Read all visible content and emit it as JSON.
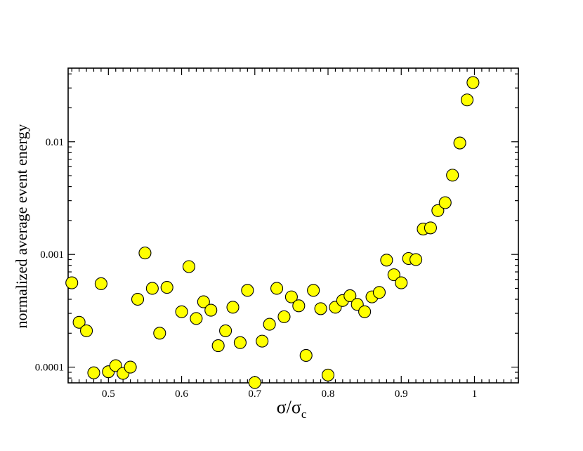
{
  "chart_data": {
    "type": "scatter",
    "xlabel_main": "σ/σ",
    "xlabel_sub": "c",
    "ylabel": "normalized average event energy",
    "xlim": [
      0.445,
      1.06
    ],
    "ylim": [
      7.25e-05,
      0.045
    ],
    "y_scale": "log",
    "x_ticks": [
      {
        "value": 0.5,
        "label": "0.5"
      },
      {
        "value": 0.6,
        "label": "0.6"
      },
      {
        "value": 0.7,
        "label": "0.7"
      },
      {
        "value": 0.8,
        "label": "0.8"
      },
      {
        "value": 0.9,
        "label": "0.9"
      },
      {
        "value": 1.0,
        "label": "1"
      }
    ],
    "y_ticks": [
      {
        "value": 0.0001,
        "label": "0.0001"
      },
      {
        "value": 0.001,
        "label": "0.001"
      },
      {
        "value": 0.01,
        "label": "0.01"
      }
    ],
    "grid": false,
    "marker_color": "#ffff00",
    "marker_edge": "#000000",
    "points": [
      [
        0.45,
        0.00056
      ],
      [
        0.46,
        0.00025
      ],
      [
        0.47,
        0.00021
      ],
      [
        0.48,
        8.9e-05
      ],
      [
        0.49,
        0.00055
      ],
      [
        0.5,
        9.1e-05
      ],
      [
        0.51,
        0.000103
      ],
      [
        0.52,
        8.8e-05
      ],
      [
        0.53,
        0.0001
      ],
      [
        0.54,
        0.0004
      ],
      [
        0.55,
        0.00103
      ],
      [
        0.56,
        0.0005
      ],
      [
        0.57,
        0.0002
      ],
      [
        0.58,
        0.00051
      ],
      [
        0.6,
        0.00031
      ],
      [
        0.61,
        0.00078
      ],
      [
        0.62,
        0.00027
      ],
      [
        0.63,
        0.00038
      ],
      [
        0.64,
        0.00032
      ],
      [
        0.65,
        0.000155
      ],
      [
        0.66,
        0.00021
      ],
      [
        0.67,
        0.00034
      ],
      [
        0.68,
        0.000165
      ],
      [
        0.69,
        0.00048
      ],
      [
        0.7,
        7.3e-05
      ],
      [
        0.71,
        0.00017
      ],
      [
        0.72,
        0.00024
      ],
      [
        0.73,
        0.0005
      ],
      [
        0.74,
        0.00028
      ],
      [
        0.75,
        0.00042
      ],
      [
        0.76,
        0.00035
      ],
      [
        0.77,
        0.000127
      ],
      [
        0.78,
        0.00048
      ],
      [
        0.79,
        0.00033
      ],
      [
        0.8,
        8.5e-05
      ],
      [
        0.81,
        0.00034
      ],
      [
        0.82,
        0.00039
      ],
      [
        0.83,
        0.00043
      ],
      [
        0.84,
        0.00036
      ],
      [
        0.85,
        0.00031
      ],
      [
        0.86,
        0.00042
      ],
      [
        0.87,
        0.00046
      ],
      [
        0.88,
        0.00089
      ],
      [
        0.89,
        0.00066
      ],
      [
        0.9,
        0.00056
      ],
      [
        0.91,
        0.00092
      ],
      [
        0.92,
        0.0009
      ],
      [
        0.93,
        0.00168
      ],
      [
        0.94,
        0.00172
      ],
      [
        0.95,
        0.00245
      ],
      [
        0.96,
        0.00288
      ],
      [
        0.97,
        0.00505
      ],
      [
        0.98,
        0.00975
      ],
      [
        0.99,
        0.0235
      ],
      [
        0.998,
        0.0335
      ]
    ]
  }
}
